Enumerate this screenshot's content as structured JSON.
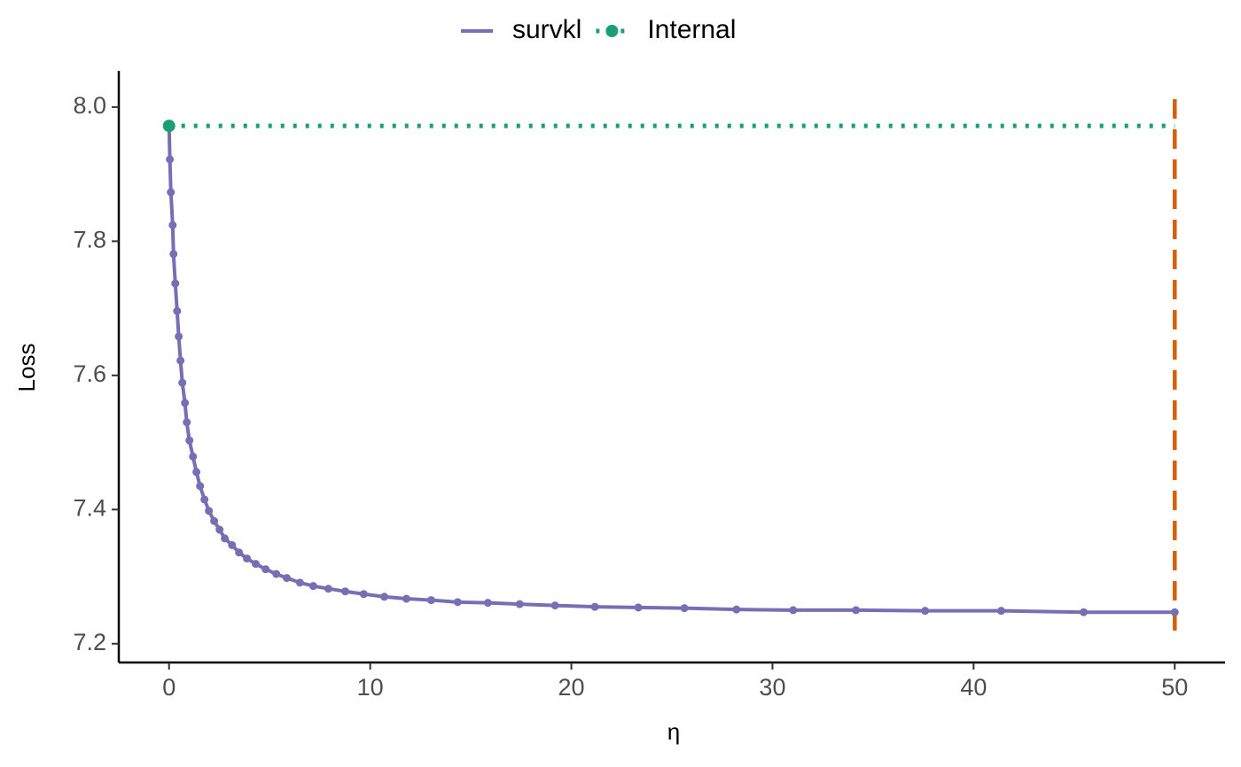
{
  "chart_data": {
    "type": "line",
    "x_label": "η",
    "y_label": "Loss",
    "xlim": [
      -2.5,
      52.5
    ],
    "ylim": [
      7.172,
      8.054
    ],
    "xticks": [
      0,
      10,
      20,
      30,
      40,
      50
    ],
    "yticks": [
      {
        "value": 7.2,
        "label": "7.2"
      },
      {
        "value": 7.4,
        "label": "7.4"
      },
      {
        "value": 7.6,
        "label": "7.6"
      },
      {
        "value": 7.8,
        "label": "7.8"
      },
      {
        "value": 8.0,
        "label": "8.0"
      }
    ],
    "legend": "top",
    "series": [
      {
        "name": "survkl",
        "color": "#7570b3",
        "style": "solid",
        "x": [
          0,
          0.04,
          0.09,
          0.18,
          0.22,
          0.31,
          0.4,
          0.48,
          0.57,
          0.66,
          0.79,
          0.88,
          1.01,
          1.19,
          1.36,
          1.54,
          1.76,
          1.98,
          2.24,
          2.51,
          2.77,
          3.13,
          3.48,
          3.87,
          4.31,
          4.8,
          5.33,
          5.85,
          6.51,
          7.17,
          7.92,
          8.76,
          9.68,
          10.7,
          11.8,
          13.03,
          14.35,
          15.85,
          17.43,
          19.19,
          21.17,
          23.33,
          25.62,
          28.21,
          31.03,
          34.15,
          37.59,
          41.37,
          45.47,
          50
        ],
        "values": [
          7.972,
          7.922,
          7.873,
          7.824,
          7.781,
          7.737,
          7.696,
          7.658,
          7.622,
          7.589,
          7.559,
          7.53,
          7.503,
          7.479,
          7.456,
          7.435,
          7.415,
          7.398,
          7.383,
          7.37,
          7.357,
          7.347,
          7.336,
          7.327,
          7.319,
          7.311,
          7.304,
          7.298,
          7.291,
          7.286,
          7.282,
          7.278,
          7.274,
          7.27,
          7.267,
          7.265,
          7.262,
          7.261,
          7.259,
          7.257,
          7.255,
          7.254,
          7.253,
          7.251,
          7.25,
          7.25,
          7.249,
          7.249,
          7.247,
          7.247
        ]
      },
      {
        "name": "Internal",
        "color": "#1b9e77",
        "style": "dotted",
        "x": [
          0,
          50
        ],
        "values": [
          7.972,
          7.972
        ]
      }
    ],
    "vline": {
      "x": 50,
      "color": "#d95f02",
      "style": "dashed"
    }
  }
}
